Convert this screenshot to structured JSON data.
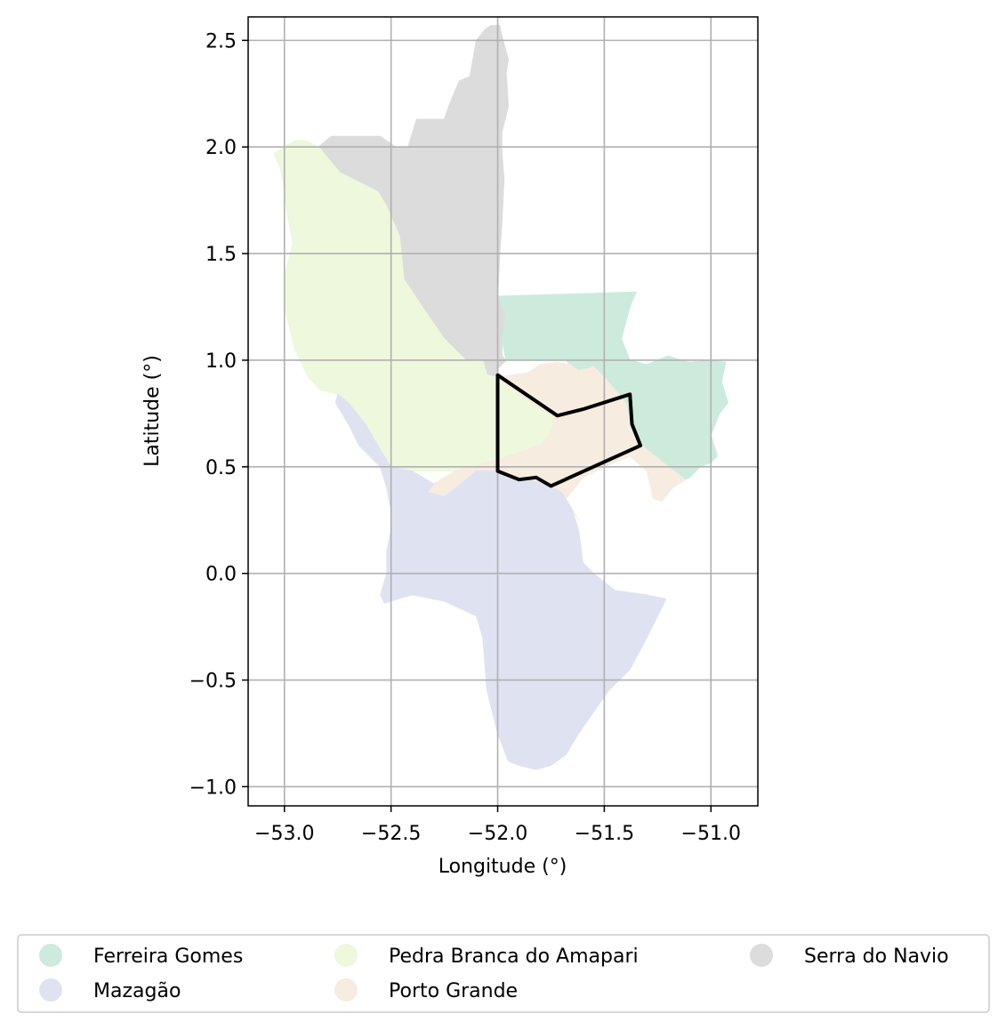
{
  "axes": {
    "xlabel": "Longitude (°)",
    "ylabel": "Latitude (°)",
    "xlim": [
      -53.17,
      -50.78
    ],
    "ylim": [
      -1.09,
      2.61
    ],
    "xticks": [
      {
        "value": -53.0,
        "label": "−53.0"
      },
      {
        "value": -52.5,
        "label": "−52.5"
      },
      {
        "value": -52.0,
        "label": "−52.0"
      },
      {
        "value": -51.5,
        "label": "−51.5"
      },
      {
        "value": -51.0,
        "label": "−51.0"
      }
    ],
    "yticks": [
      {
        "value": 2.5,
        "label": "2.5"
      },
      {
        "value": 2.0,
        "label": "2.0"
      },
      {
        "value": 1.5,
        "label": "1.5"
      },
      {
        "value": 1.0,
        "label": "1.0"
      },
      {
        "value": 0.5,
        "label": "0.5"
      },
      {
        "value": 0.0,
        "label": "0.0"
      },
      {
        "value": -0.5,
        "label": "−0.5"
      },
      {
        "value": -1.0,
        "label": "−1.0"
      }
    ],
    "grid": true
  },
  "legend": {
    "placement": "bottom-center",
    "columns": 3,
    "entries": [
      {
        "label": "Ferreira Gomes",
        "color": "#cdebdc"
      },
      {
        "label": "Mazagão",
        "color": "#dfe3f1"
      },
      {
        "label": "Pedra Branca do Amapari",
        "color": "#eef8dc"
      },
      {
        "label": "Porto Grande",
        "color": "#f6ecdf"
      },
      {
        "label": "Serra do Navio",
        "color": "#dcdcdc"
      }
    ]
  },
  "regions": [
    {
      "name": "Serra do Navio",
      "color": "#dcdcdc",
      "polygon": [
        [
          -52.84,
          2.0
        ],
        [
          -52.78,
          2.05
        ],
        [
          -52.55,
          2.05
        ],
        [
          -52.48,
          2.0
        ],
        [
          -52.42,
          2.0
        ],
        [
          -52.38,
          2.13
        ],
        [
          -52.25,
          2.13
        ],
        [
          -52.23,
          2.19
        ],
        [
          -52.18,
          2.31
        ],
        [
          -52.13,
          2.33
        ],
        [
          -52.1,
          2.5
        ],
        [
          -52.06,
          2.55
        ],
        [
          -52.03,
          2.57
        ],
        [
          -51.99,
          2.57
        ],
        [
          -51.98,
          2.52
        ],
        [
          -51.95,
          2.41
        ],
        [
          -51.96,
          2.35
        ],
        [
          -51.95,
          2.19
        ],
        [
          -51.98,
          2.07
        ],
        [
          -51.98,
          1.97
        ],
        [
          -51.97,
          1.85
        ],
        [
          -51.98,
          1.65
        ],
        [
          -51.99,
          1.5
        ],
        [
          -52.0,
          1.3
        ],
        [
          -51.96,
          1.21
        ],
        [
          -51.98,
          1.09
        ],
        [
          -51.98,
          1.02
        ],
        [
          -51.96,
          1.0
        ],
        [
          -52.0,
          0.96
        ],
        [
          -52.01,
          0.88
        ],
        [
          -52.02,
          0.86
        ],
        [
          -52.04,
          0.85
        ],
        [
          -52.05,
          0.93
        ],
        [
          -52.07,
          1.0
        ],
        [
          -52.15,
          1.0
        ],
        [
          -52.25,
          1.1
        ],
        [
          -52.32,
          1.2
        ],
        [
          -52.44,
          1.38
        ],
        [
          -52.46,
          1.58
        ],
        [
          -52.52,
          1.72
        ],
        [
          -52.56,
          1.79
        ],
        [
          -52.66,
          1.84
        ],
        [
          -52.74,
          1.88
        ]
      ]
    },
    {
      "name": "Pedra Branca do Amapari",
      "color": "#eef8dc",
      "polygon": [
        [
          -53.05,
          1.97
        ],
        [
          -53.0,
          2.0
        ],
        [
          -52.95,
          2.03
        ],
        [
          -52.9,
          2.03
        ],
        [
          -52.84,
          2.0
        ],
        [
          -52.74,
          1.88
        ],
        [
          -52.66,
          1.84
        ],
        [
          -52.56,
          1.79
        ],
        [
          -52.52,
          1.72
        ],
        [
          -52.46,
          1.58
        ],
        [
          -52.44,
          1.38
        ],
        [
          -52.32,
          1.2
        ],
        [
          -52.25,
          1.1
        ],
        [
          -52.15,
          1.0
        ],
        [
          -52.07,
          1.0
        ],
        [
          -52.05,
          0.93
        ],
        [
          -52.0,
          0.92
        ],
        [
          -51.9,
          0.84
        ],
        [
          -51.78,
          0.76
        ],
        [
          -51.73,
          0.74
        ],
        [
          -51.75,
          0.66
        ],
        [
          -51.8,
          0.6
        ],
        [
          -51.95,
          0.55
        ],
        [
          -52.05,
          0.52
        ],
        [
          -52.2,
          0.48
        ],
        [
          -52.3,
          0.48
        ],
        [
          -52.4,
          0.48
        ],
        [
          -52.5,
          0.5
        ],
        [
          -52.55,
          0.58
        ],
        [
          -52.62,
          0.7
        ],
        [
          -52.7,
          0.8
        ],
        [
          -52.75,
          0.84
        ],
        [
          -52.83,
          0.86
        ],
        [
          -52.89,
          0.92
        ],
        [
          -52.95,
          1.05
        ],
        [
          -53.0,
          1.25
        ],
        [
          -53.0,
          1.4
        ],
        [
          -52.96,
          1.55
        ],
        [
          -52.99,
          1.7
        ],
        [
          -53.0,
          1.8
        ],
        [
          -53.02,
          1.9
        ]
      ]
    },
    {
      "name": "Ferreira Gomes",
      "color": "#cdebdc",
      "polygon": [
        [
          -52.0,
          1.3
        ],
        [
          -51.35,
          1.32
        ],
        [
          -51.38,
          1.25
        ],
        [
          -51.42,
          1.1
        ],
        [
          -51.38,
          1.0
        ],
        [
          -51.3,
          0.98
        ],
        [
          -51.2,
          1.02
        ],
        [
          -51.1,
          0.99
        ],
        [
          -51.0,
          1.0
        ],
        [
          -50.93,
          0.99
        ],
        [
          -50.95,
          0.9
        ],
        [
          -50.92,
          0.8
        ],
        [
          -50.96,
          0.75
        ],
        [
          -51.0,
          0.65
        ],
        [
          -50.97,
          0.55
        ],
        [
          -51.0,
          0.52
        ],
        [
          -51.05,
          0.5
        ],
        [
          -51.1,
          0.45
        ],
        [
          -51.12,
          0.44
        ],
        [
          -51.2,
          0.5
        ],
        [
          -51.3,
          0.58
        ],
        [
          -51.36,
          0.64
        ],
        [
          -51.38,
          0.7
        ],
        [
          -51.4,
          0.8
        ],
        [
          -51.45,
          0.86
        ],
        [
          -51.5,
          0.92
        ],
        [
          -51.55,
          0.97
        ],
        [
          -51.62,
          0.95
        ],
        [
          -51.66,
          0.98
        ],
        [
          -51.68,
          1.0
        ],
        [
          -51.75,
          1.0
        ],
        [
          -51.85,
          1.0
        ],
        [
          -51.96,
          1.0
        ],
        [
          -51.98,
          1.09
        ],
        [
          -51.96,
          1.21
        ]
      ]
    },
    {
      "name": "Porto Grande",
      "color": "#f6ecdf",
      "polygon": [
        [
          -52.0,
          0.92
        ],
        [
          -51.9,
          0.84
        ],
        [
          -51.78,
          0.76
        ],
        [
          -51.73,
          0.74
        ],
        [
          -51.75,
          0.66
        ],
        [
          -51.8,
          0.6
        ],
        [
          -51.95,
          0.55
        ],
        [
          -52.05,
          0.52
        ],
        [
          -52.2,
          0.48
        ],
        [
          -52.3,
          0.42
        ],
        [
          -52.33,
          0.38
        ],
        [
          -52.25,
          0.36
        ],
        [
          -52.17,
          0.42
        ],
        [
          -52.1,
          0.48
        ],
        [
          -52.0,
          0.48
        ],
        [
          -51.9,
          0.45
        ],
        [
          -51.82,
          0.43
        ],
        [
          -51.76,
          0.41
        ],
        [
          -51.7,
          0.38
        ],
        [
          -51.65,
          0.3
        ],
        [
          -51.62,
          0.25
        ],
        [
          -51.68,
          0.35
        ],
        [
          -51.6,
          0.45
        ],
        [
          -51.5,
          0.5
        ],
        [
          -51.38,
          0.55
        ],
        [
          -51.3,
          0.48
        ],
        [
          -51.27,
          0.35
        ],
        [
          -51.23,
          0.34
        ],
        [
          -51.18,
          0.4
        ],
        [
          -51.12,
          0.44
        ],
        [
          -51.2,
          0.5
        ],
        [
          -51.3,
          0.58
        ],
        [
          -51.36,
          0.64
        ],
        [
          -51.38,
          0.7
        ],
        [
          -51.4,
          0.8
        ],
        [
          -51.45,
          0.86
        ],
        [
          -51.5,
          0.92
        ],
        [
          -51.55,
          0.97
        ],
        [
          -51.62,
          0.95
        ],
        [
          -51.66,
          0.98
        ],
        [
          -51.72,
          0.99
        ],
        [
          -51.8,
          0.98
        ],
        [
          -51.86,
          0.94
        ]
      ]
    },
    {
      "name": "Mazagão",
      "color": "#dfe3f1",
      "polygon": [
        [
          -52.75,
          0.84
        ],
        [
          -52.7,
          0.8
        ],
        [
          -52.62,
          0.7
        ],
        [
          -52.55,
          0.58
        ],
        [
          -52.5,
          0.5
        ],
        [
          -52.4,
          0.48
        ],
        [
          -52.3,
          0.42
        ],
        [
          -52.33,
          0.38
        ],
        [
          -52.25,
          0.36
        ],
        [
          -52.17,
          0.42
        ],
        [
          -52.1,
          0.48
        ],
        [
          -52.0,
          0.48
        ],
        [
          -51.9,
          0.45
        ],
        [
          -51.82,
          0.43
        ],
        [
          -51.76,
          0.41
        ],
        [
          -51.7,
          0.38
        ],
        [
          -51.65,
          0.3
        ],
        [
          -51.62,
          0.2
        ],
        [
          -51.6,
          0.05
        ],
        [
          -51.55,
          0.0
        ],
        [
          -51.45,
          -0.08
        ],
        [
          -51.3,
          -0.1
        ],
        [
          -51.21,
          -0.12
        ],
        [
          -51.25,
          -0.2
        ],
        [
          -51.3,
          -0.3
        ],
        [
          -51.38,
          -0.45
        ],
        [
          -51.48,
          -0.55
        ],
        [
          -51.55,
          -0.65
        ],
        [
          -51.62,
          -0.75
        ],
        [
          -51.68,
          -0.85
        ],
        [
          -51.75,
          -0.9
        ],
        [
          -51.82,
          -0.92
        ],
        [
          -51.9,
          -0.9
        ],
        [
          -51.95,
          -0.88
        ],
        [
          -52.0,
          -0.75
        ],
        [
          -52.05,
          -0.55
        ],
        [
          -52.07,
          -0.3
        ],
        [
          -52.1,
          -0.2
        ],
        [
          -52.25,
          -0.13
        ],
        [
          -52.4,
          -0.1
        ],
        [
          -52.47,
          -0.12
        ],
        [
          -52.53,
          -0.14
        ],
        [
          -52.55,
          -0.1
        ],
        [
          -52.52,
          0.0
        ],
        [
          -52.52,
          0.1
        ],
        [
          -52.5,
          0.2
        ],
        [
          -52.5,
          0.3
        ],
        [
          -52.52,
          0.4
        ],
        [
          -52.55,
          0.5
        ],
        [
          -52.65,
          0.6
        ],
        [
          -52.7,
          0.7
        ],
        [
          -52.76,
          0.8
        ]
      ]
    }
  ],
  "highlight_boundary": {
    "color": "#000000",
    "polygon": [
      [
        -52.0,
        0.93
      ],
      [
        -51.72,
        0.74
      ],
      [
        -51.6,
        0.77
      ],
      [
        -51.38,
        0.84
      ],
      [
        -51.37,
        0.7
      ],
      [
        -51.33,
        0.6
      ],
      [
        -51.75,
        0.41
      ],
      [
        -51.82,
        0.45
      ],
      [
        -51.9,
        0.44
      ],
      [
        -52.0,
        0.48
      ]
    ]
  }
}
